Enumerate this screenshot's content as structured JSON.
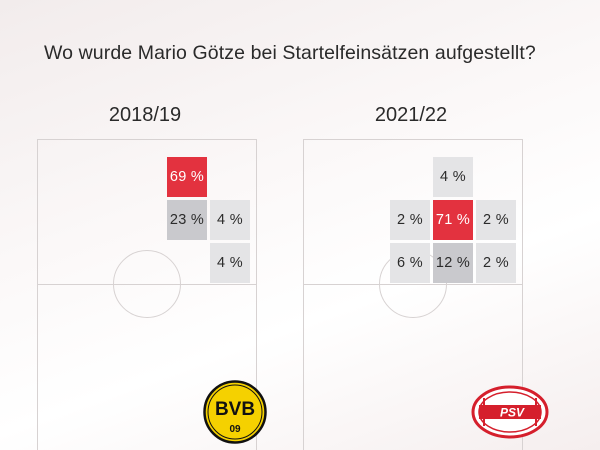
{
  "title": "Wo wurde Mario Götze bei Startelfeinsätzen aufgestellt?",
  "colors": {
    "highlight": "#e3323f",
    "cell_dark": "#c9c9cd",
    "cell_light": "#e4e4e6",
    "bvb_yellow": "#f5d100",
    "psv_red": "#d51f2c"
  },
  "chart_data": [
    {
      "type": "heatmap",
      "title": "2018/19",
      "club_logo": "BVB 09",
      "rows": [
        "0",
        "1",
        "2"
      ],
      "cols": [
        "0",
        "1",
        "2"
      ],
      "cells": [
        {
          "row": 0,
          "col": 1,
          "value": 69,
          "label": "69 %",
          "shade": "red"
        },
        {
          "row": 1,
          "col": 1,
          "value": 23,
          "label": "23 %",
          "shade": "dark"
        },
        {
          "row": 1,
          "col": 2,
          "value": 4,
          "label": "4 %",
          "shade": "light"
        },
        {
          "row": 2,
          "col": 2,
          "value": 4,
          "label": "4 %",
          "shade": "light"
        }
      ]
    },
    {
      "type": "heatmap",
      "title": "2021/22",
      "club_logo": "PSV",
      "rows": [
        "0",
        "1",
        "2"
      ],
      "cols": [
        "0",
        "1",
        "2"
      ],
      "cells": [
        {
          "row": 0,
          "col": 1,
          "value": 4,
          "label": "4 %",
          "shade": "light"
        },
        {
          "row": 1,
          "col": 0,
          "value": 2,
          "label": "2 %",
          "shade": "light"
        },
        {
          "row": 1,
          "col": 1,
          "value": 71,
          "label": "71 %",
          "shade": "red"
        },
        {
          "row": 1,
          "col": 2,
          "value": 2,
          "label": "2 %",
          "shade": "light"
        },
        {
          "row": 2,
          "col": 0,
          "value": 6,
          "label": "6 %",
          "shade": "light"
        },
        {
          "row": 2,
          "col": 1,
          "value": 12,
          "label": "12 %",
          "shade": "dark"
        },
        {
          "row": 2,
          "col": 2,
          "value": 2,
          "label": "2 %",
          "shade": "light"
        }
      ]
    }
  ]
}
